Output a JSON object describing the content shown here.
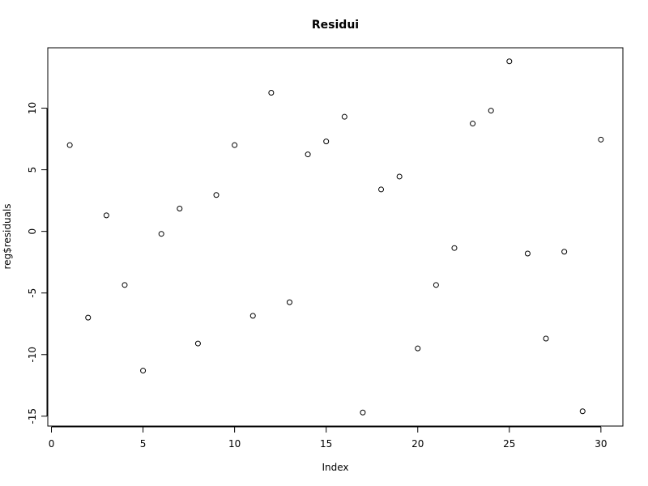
{
  "chart_data": {
    "type": "scatter",
    "title": "Residui",
    "xlabel": "Index",
    "ylabel": "reg$residuals",
    "xlim": [
      -0.2,
      31.2
    ],
    "ylim": [
      -15.8,
      14.9
    ],
    "xticks": [
      0,
      5,
      10,
      15,
      20,
      25,
      30
    ],
    "yticks": [
      -15,
      -10,
      -5,
      0,
      5,
      10
    ],
    "grid": false,
    "marker": "open-circle",
    "x": [
      1,
      2,
      3,
      4,
      5,
      6,
      7,
      8,
      9,
      10,
      11,
      12,
      13,
      14,
      15,
      16,
      17,
      18,
      19,
      20,
      21,
      22,
      23,
      24,
      25,
      26,
      27,
      28,
      29,
      30
    ],
    "y": [
      7.0,
      -7.0,
      1.3,
      -4.35,
      -11.3,
      -0.2,
      1.85,
      -9.1,
      2.95,
      7.0,
      -6.85,
      11.25,
      -5.75,
      6.25,
      7.3,
      9.3,
      -14.7,
      3.4,
      4.45,
      -9.5,
      -4.35,
      -1.35,
      8.75,
      9.8,
      13.8,
      -1.8,
      -8.7,
      -1.65,
      -14.6,
      7.45
    ]
  }
}
